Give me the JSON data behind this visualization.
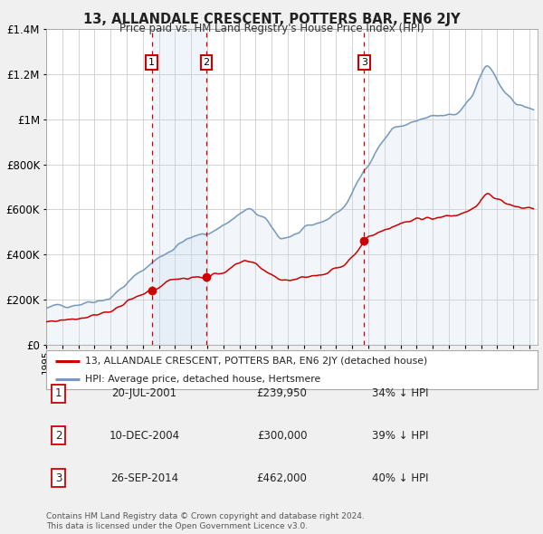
{
  "title": "13, ALLANDALE CRESCENT, POTTERS BAR, EN6 2JY",
  "subtitle": "Price paid vs. HM Land Registry's House Price Index (HPI)",
  "background_color": "#f0f0f0",
  "plot_bg_color": "#ffffff",
  "grid_color": "#cccccc",
  "ylim": [
    0,
    1400000
  ],
  "yticks": [
    0,
    200000,
    400000,
    600000,
    800000,
    1000000,
    1200000,
    1400000
  ],
  "xlim_start": 1995.0,
  "xlim_end": 2025.5,
  "sale_dates": [
    2001.55,
    2004.94,
    2014.74
  ],
  "sale_prices": [
    239950,
    300000,
    462000
  ],
  "sale_labels": [
    "1",
    "2",
    "3"
  ],
  "red_line_color": "#cc0000",
  "blue_line_color": "#7799bb",
  "blue_fill_color": "#ccddf0",
  "shaded_region_start": 2001.55,
  "shaded_region_end": 2004.94,
  "legend_items": [
    {
      "label": "13, ALLANDALE CRESCENT, POTTERS BAR, EN6 2JY (detached house)",
      "color": "#cc0000"
    },
    {
      "label": "HPI: Average price, detached house, Hertsmere",
      "color": "#7799bb"
    }
  ],
  "table_rows": [
    {
      "num": "1",
      "date": "20-JUL-2001",
      "price": "£239,950",
      "pct": "34% ↓ HPI"
    },
    {
      "num": "2",
      "date": "10-DEC-2004",
      "price": "£300,000",
      "pct": "39% ↓ HPI"
    },
    {
      "num": "3",
      "date": "26-SEP-2014",
      "price": "£462,000",
      "pct": "40% ↓ HPI"
    }
  ],
  "footer": [
    "Contains HM Land Registry data © Crown copyright and database right 2024.",
    "This data is licensed under the Open Government Licence v3.0."
  ],
  "xtick_years": [
    1995,
    1996,
    1997,
    1998,
    1999,
    2000,
    2001,
    2002,
    2003,
    2004,
    2005,
    2006,
    2007,
    2008,
    2009,
    2010,
    2011,
    2012,
    2013,
    2014,
    2015,
    2016,
    2017,
    2018,
    2019,
    2020,
    2021,
    2022,
    2023,
    2024,
    2025
  ]
}
